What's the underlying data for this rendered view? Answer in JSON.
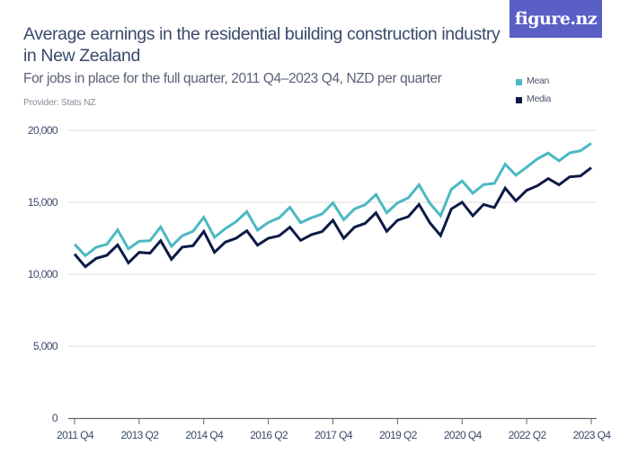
{
  "header": {
    "title": "Average earnings in the residential building construction industry in New Zealand",
    "subtitle": "For jobs in place for the full quarter, 2011 Q4–2023 Q4, NZD per quarter",
    "provider": "Provider: Stats NZ",
    "logo": "figure.nz"
  },
  "colors": {
    "mean": "#4bb8c2",
    "median": "#0c1a45",
    "logo_bg": "#5a5fc6",
    "grid": "#dddddd"
  },
  "chart_data": {
    "type": "line",
    "title": "Average earnings in the residential building construction industry in New Zealand",
    "ylim": [
      0,
      20000
    ],
    "grid": true,
    "legend": "top-right",
    "y_ticks": [
      0,
      5000,
      10000,
      15000,
      20000
    ],
    "y_tick_labels": [
      "0",
      "5,000",
      "10,000",
      "15,000",
      "20,000"
    ],
    "x_tick_labels": [
      "2011 Q4",
      "2013 Q2",
      "2014 Q4",
      "2016 Q2",
      "2017 Q4",
      "2019 Q2",
      "2020 Q4",
      "2022 Q2",
      "2023 Q4"
    ],
    "x": [
      "2011 Q4",
      "2012 Q1",
      "2012 Q2",
      "2012 Q3",
      "2012 Q4",
      "2013 Q1",
      "2013 Q2",
      "2013 Q3",
      "2013 Q4",
      "2014 Q1",
      "2014 Q2",
      "2014 Q3",
      "2014 Q4",
      "2015 Q1",
      "2015 Q2",
      "2015 Q3",
      "2015 Q4",
      "2016 Q1",
      "2016 Q2",
      "2016 Q3",
      "2016 Q4",
      "2017 Q1",
      "2017 Q2",
      "2017 Q3",
      "2017 Q4",
      "2018 Q1",
      "2018 Q2",
      "2018 Q3",
      "2018 Q4",
      "2019 Q1",
      "2019 Q2",
      "2019 Q3",
      "2019 Q4",
      "2020 Q1",
      "2020 Q2",
      "2020 Q3",
      "2020 Q4",
      "2021 Q1",
      "2021 Q2",
      "2021 Q3",
      "2021 Q4",
      "2022 Q1",
      "2022 Q2",
      "2022 Q3",
      "2022 Q4",
      "2023 Q1",
      "2023 Q2",
      "2023 Q3",
      "2023 Q4"
    ],
    "series": [
      {
        "name": "Mean",
        "values": [
          12080,
          11290,
          11870,
          12080,
          13080,
          11770,
          12290,
          12330,
          13290,
          11940,
          12670,
          12980,
          13960,
          12560,
          13170,
          13650,
          14350,
          13060,
          13600,
          13920,
          14650,
          13580,
          13920,
          14190,
          14960,
          13790,
          14540,
          14830,
          15540,
          14270,
          14960,
          15310,
          16210,
          14940,
          14060,
          15900,
          16480,
          15630,
          16230,
          16310,
          17650,
          16880,
          17440,
          18020,
          18420,
          17880,
          18440,
          18580,
          19100
        ]
      },
      {
        "name": "Media",
        "values": [
          11400,
          10520,
          11100,
          11310,
          12040,
          10790,
          11520,
          11460,
          12330,
          11040,
          11880,
          11980,
          12980,
          11520,
          12230,
          12500,
          13020,
          12020,
          12500,
          12670,
          13270,
          12350,
          12750,
          12960,
          13750,
          12500,
          13270,
          13540,
          14270,
          12980,
          13750,
          14000,
          14850,
          13580,
          12690,
          14540,
          15000,
          14060,
          14850,
          14630,
          15980,
          15100,
          15830,
          16150,
          16650,
          16210,
          16770,
          16830,
          17400
        ]
      }
    ]
  }
}
